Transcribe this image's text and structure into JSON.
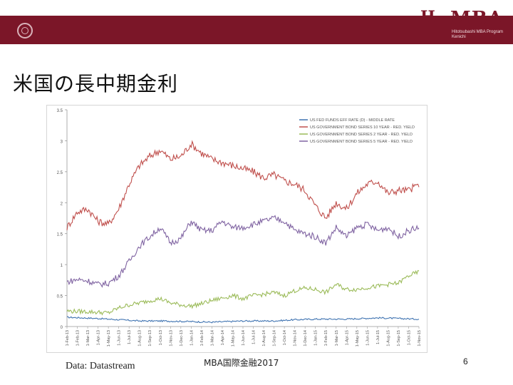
{
  "slide": {
    "title": "米国の長中期金利",
    "source": "Data: Datastream",
    "footer": "MBA国際金融2017",
    "page_number": "6"
  },
  "header": {
    "brand_mark": "H",
    "brand": "MBA",
    "subtitle": "Hitotsubashi MBA Program Kenichi",
    "bar_color": "#7b1628"
  },
  "chart_data": {
    "type": "line",
    "title": "",
    "xlabel": "",
    "ylabel": "",
    "ylim": [
      0,
      3.5
    ],
    "yticks": [
      0,
      0.5,
      1,
      1.5,
      2,
      2.5,
      3,
      3.5
    ],
    "ytick_labels": [
      "0",
      "0.5",
      "1",
      "1.5",
      "2",
      "2.5",
      "3",
      "3.5"
    ],
    "x_tick_labels": [
      "1-Feb-13",
      "1-Feb-13",
      "1-Mar-13",
      "1-Apr-13",
      "1-May-13",
      "1-Jun-13",
      "1-Jul-13",
      "1-Aug-13",
      "1-Sep-13",
      "1-Oct-13",
      "1-Nov-13",
      "1-Dec-13",
      "1-Jan-14",
      "1-Feb-14",
      "1-Mar-14",
      "1-Apr-14",
      "1-May-14",
      "1-Jun-14",
      "1-Jul-14",
      "1-Aug-14",
      "1-Sep-14",
      "1-Oct-14",
      "1-Nov-14",
      "1-Dec-14",
      "1-Jan-15",
      "1-Feb-15",
      "1-Mar-15",
      "1-Apr-15",
      "1-May-15",
      "1-Jun-15",
      "1-Jul-15",
      "1-Aug-15",
      "1-Sep-15",
      "1-Oct-15",
      "1-Nov-15"
    ],
    "x_index_max": 34,
    "legend_position": "top-right",
    "series": [
      {
        "name": "US FED FUNDS EFF RATE (D) - MIDDLE RATE",
        "color": "#3f73b1",
        "points": [
          [
            0,
            0.15
          ],
          [
            3,
            0.13
          ],
          [
            5,
            0.11
          ],
          [
            7,
            0.09
          ],
          [
            9,
            0.09
          ],
          [
            12,
            0.08
          ],
          [
            14,
            0.07
          ],
          [
            17,
            0.09
          ],
          [
            20,
            0.09
          ],
          [
            22,
            0.11
          ],
          [
            24,
            0.12
          ],
          [
            27,
            0.12
          ],
          [
            30,
            0.14
          ],
          [
            32,
            0.13
          ],
          [
            34,
            0.12
          ]
        ]
      },
      {
        "name": "US GOVERNMENT BOND SERIES 10 YEAR - RED. YIELD",
        "color": "#c0504d",
        "points": [
          [
            0,
            1.6
          ],
          [
            1,
            1.85
          ],
          [
            2,
            1.9
          ],
          [
            3,
            1.7
          ],
          [
            4,
            1.65
          ],
          [
            5,
            1.9
          ],
          [
            6,
            2.3
          ],
          [
            7,
            2.6
          ],
          [
            8,
            2.75
          ],
          [
            9,
            2.85
          ],
          [
            10,
            2.7
          ],
          [
            11,
            2.75
          ],
          [
            12,
            2.95
          ],
          [
            13,
            2.8
          ],
          [
            14,
            2.7
          ],
          [
            15,
            2.65
          ],
          [
            16,
            2.6
          ],
          [
            17,
            2.55
          ],
          [
            18,
            2.5
          ],
          [
            19,
            2.4
          ],
          [
            20,
            2.45
          ],
          [
            21,
            2.35
          ],
          [
            22,
            2.3
          ],
          [
            23,
            2.2
          ],
          [
            24,
            1.95
          ],
          [
            25,
            1.75
          ],
          [
            26,
            2.0
          ],
          [
            27,
            1.9
          ],
          [
            28,
            2.15
          ],
          [
            29,
            2.3
          ],
          [
            30,
            2.35
          ],
          [
            31,
            2.15
          ],
          [
            32,
            2.2
          ],
          [
            33,
            2.2
          ],
          [
            34,
            2.3
          ]
        ]
      },
      {
        "name": "US GOVERNMENT BOND SERIES 2 YEAR - RED. YIELD",
        "color": "#9bbb59",
        "points": [
          [
            0,
            0.25
          ],
          [
            2,
            0.24
          ],
          [
            4,
            0.22
          ],
          [
            5,
            0.3
          ],
          [
            6,
            0.35
          ],
          [
            7,
            0.38
          ],
          [
            8,
            0.42
          ],
          [
            9,
            0.45
          ],
          [
            10,
            0.38
          ],
          [
            11,
            0.35
          ],
          [
            12,
            0.33
          ],
          [
            13,
            0.37
          ],
          [
            14,
            0.42
          ],
          [
            15,
            0.46
          ],
          [
            16,
            0.5
          ],
          [
            17,
            0.45
          ],
          [
            18,
            0.5
          ],
          [
            19,
            0.52
          ],
          [
            20,
            0.55
          ],
          [
            21,
            0.5
          ],
          [
            22,
            0.58
          ],
          [
            23,
            0.62
          ],
          [
            24,
            0.6
          ],
          [
            25,
            0.55
          ],
          [
            26,
            0.68
          ],
          [
            27,
            0.6
          ],
          [
            28,
            0.6
          ],
          [
            29,
            0.63
          ],
          [
            30,
            0.65
          ],
          [
            31,
            0.68
          ],
          [
            32,
            0.7
          ],
          [
            33,
            0.82
          ],
          [
            34,
            0.88
          ]
        ]
      },
      {
        "name": "US GOVERNMENT BOND SERIES 5 YEAR - RED. YIELD",
        "color": "#8064a2",
        "points": [
          [
            0,
            0.72
          ],
          [
            1,
            0.76
          ],
          [
            2,
            0.74
          ],
          [
            3,
            0.68
          ],
          [
            4,
            0.7
          ],
          [
            5,
            0.82
          ],
          [
            6,
            1.05
          ],
          [
            7,
            1.3
          ],
          [
            8,
            1.45
          ],
          [
            9,
            1.6
          ],
          [
            10,
            1.35
          ],
          [
            11,
            1.42
          ],
          [
            12,
            1.7
          ],
          [
            13,
            1.55
          ],
          [
            14,
            1.55
          ],
          [
            15,
            1.7
          ],
          [
            16,
            1.6
          ],
          [
            17,
            1.6
          ],
          [
            18,
            1.65
          ],
          [
            19,
            1.7
          ],
          [
            20,
            1.75
          ],
          [
            21,
            1.7
          ],
          [
            22,
            1.55
          ],
          [
            23,
            1.5
          ],
          [
            24,
            1.45
          ],
          [
            25,
            1.35
          ],
          [
            26,
            1.6
          ],
          [
            27,
            1.45
          ],
          [
            28,
            1.6
          ],
          [
            29,
            1.65
          ],
          [
            30,
            1.55
          ],
          [
            31,
            1.6
          ],
          [
            32,
            1.45
          ],
          [
            33,
            1.55
          ],
          [
            34,
            1.6
          ]
        ]
      }
    ]
  }
}
